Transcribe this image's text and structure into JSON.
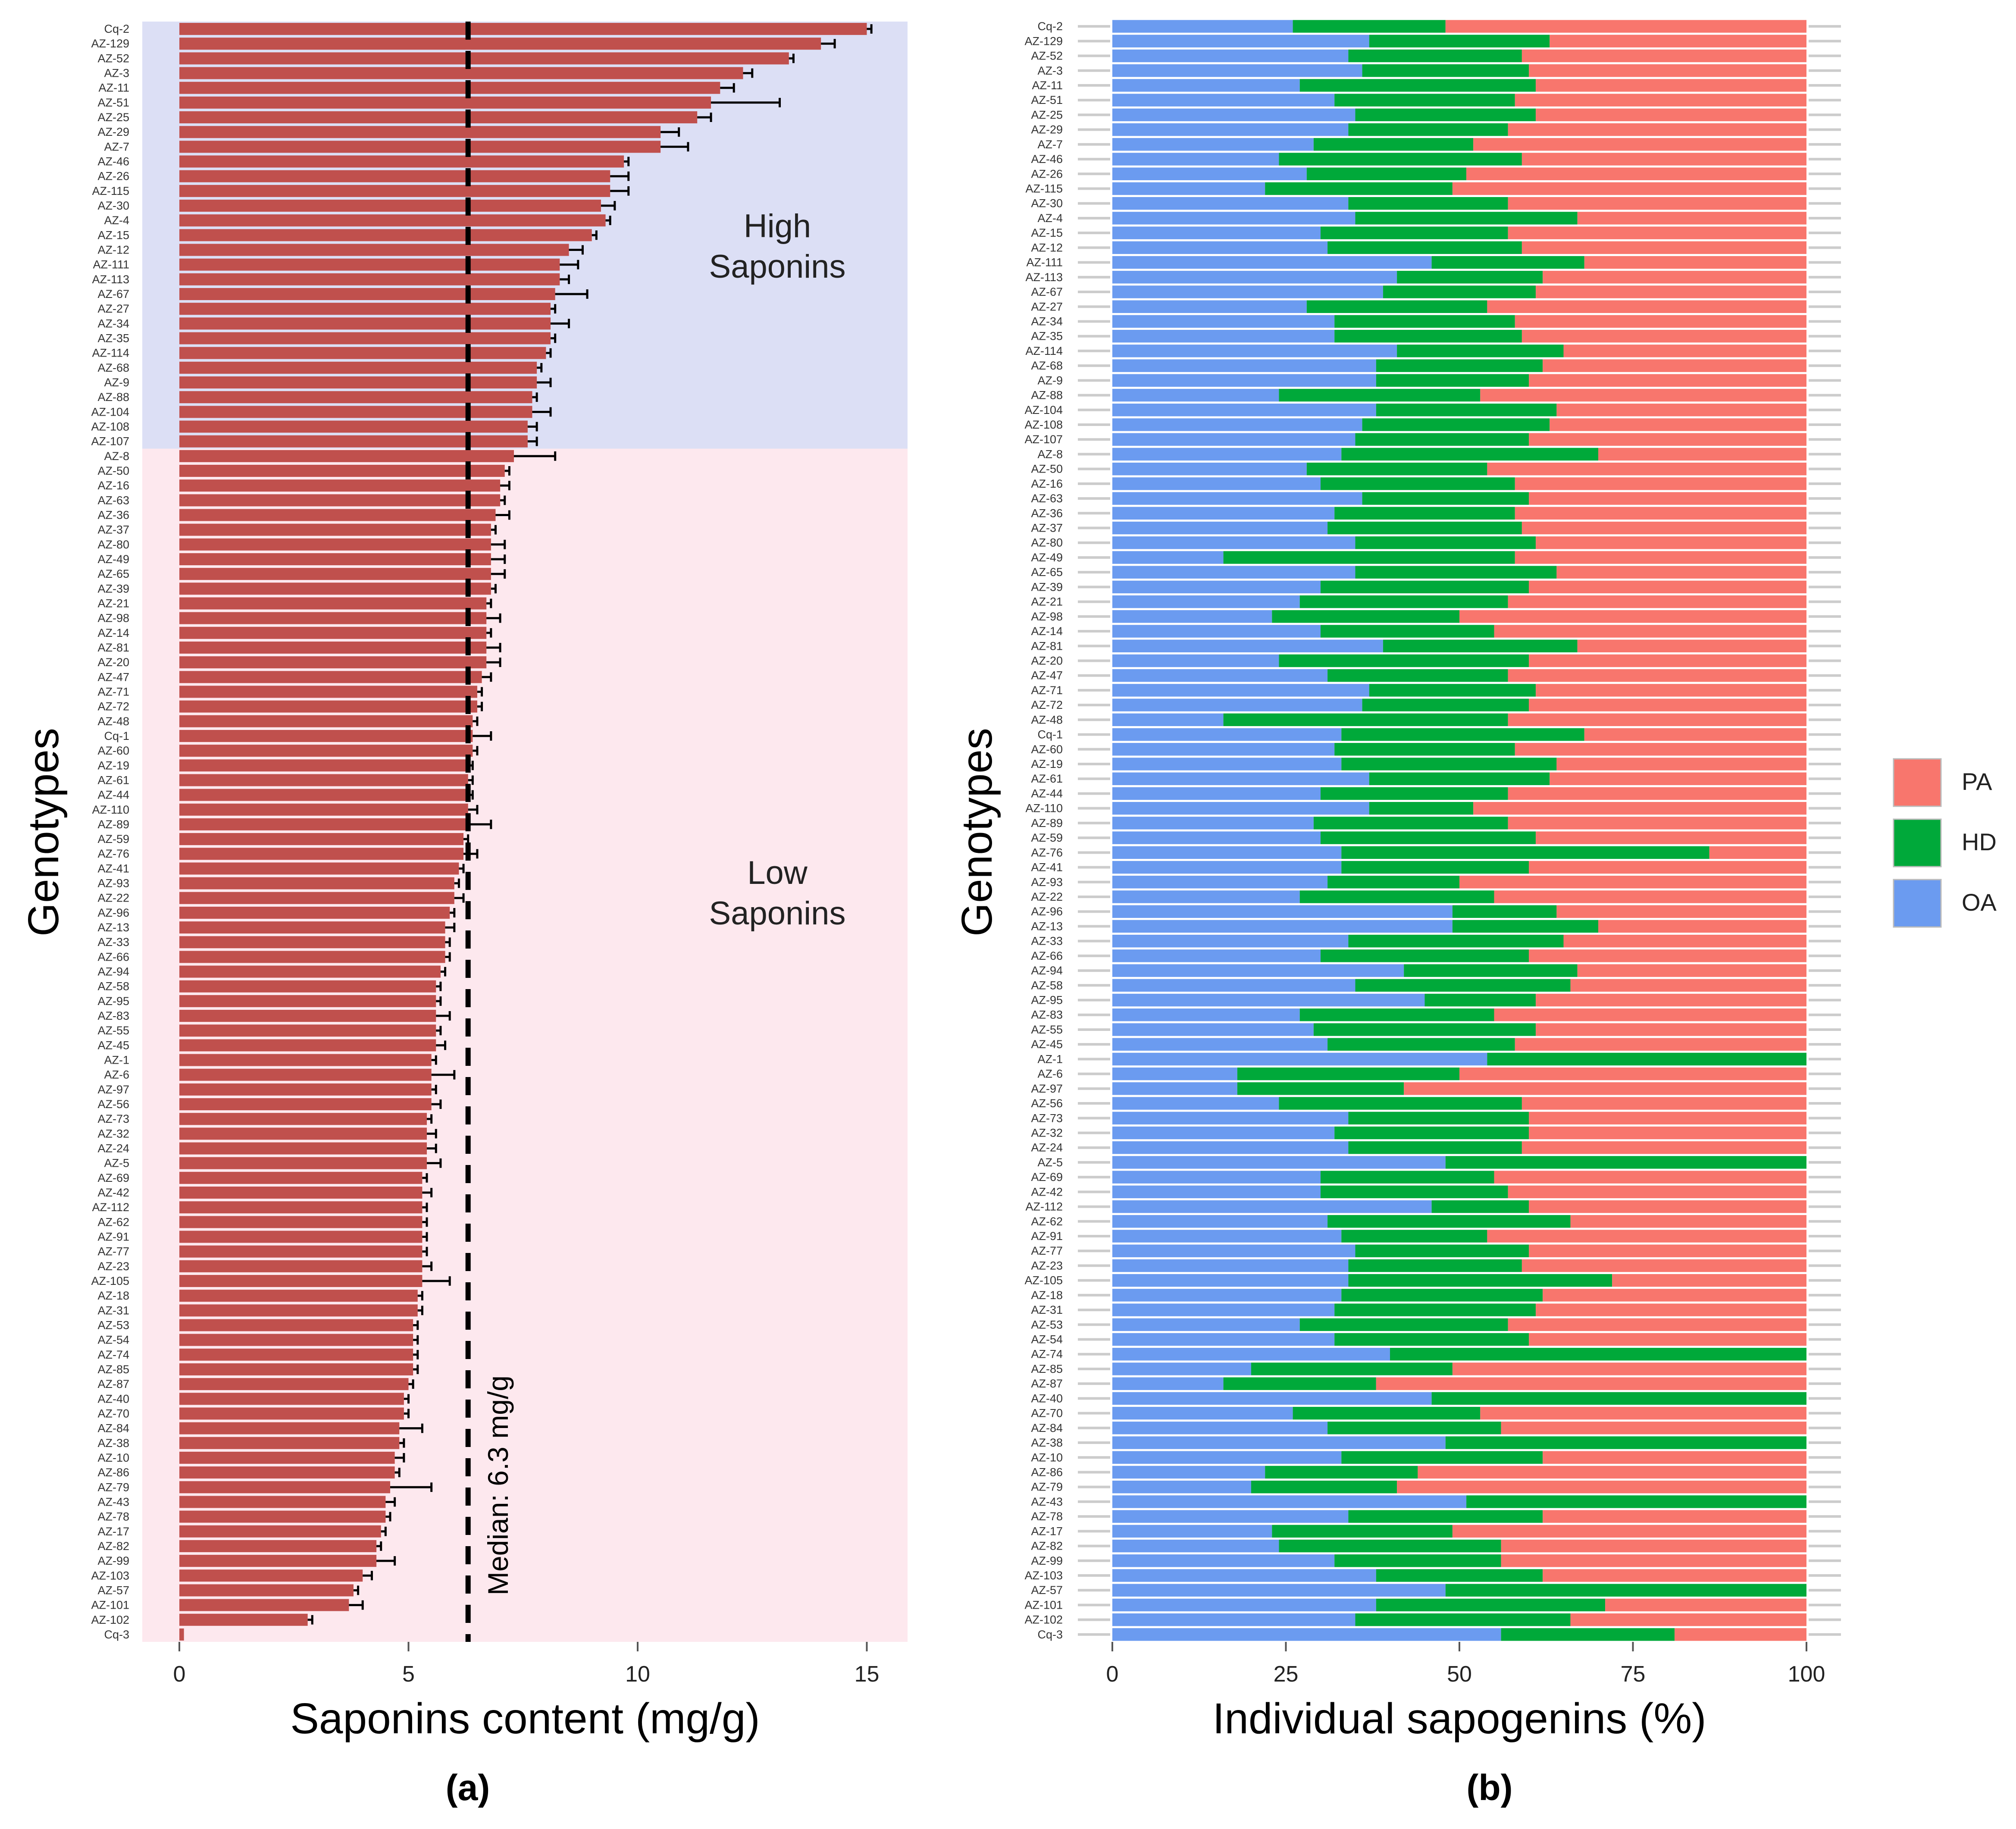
{
  "figure": {
    "panel_a_caption": "(a)",
    "panel_b_caption": "(b)"
  },
  "colors": {
    "bar_red": "#c0504d",
    "high_band": "#dcdff5",
    "low_band": "#fde8ee",
    "PA": "#f8766d",
    "HD": "#00a93a",
    "OA": "#6b9bf0",
    "axis_line": "#cccccc"
  },
  "chart_data": [
    {
      "type": "bar",
      "orientation": "horizontal",
      "title": "",
      "xlabel": "Saponins content (mg/g)",
      "ylabel": "Genotypes",
      "xlim": [
        -0.8,
        16.1
      ],
      "xticks": [
        0,
        5,
        10,
        15
      ],
      "categories": [
        "Cq-2",
        "AZ-129",
        "AZ-52",
        "AZ-3",
        "AZ-11",
        "AZ-51",
        "AZ-25",
        "AZ-29",
        "AZ-7",
        "AZ-46",
        "AZ-26",
        "AZ-115",
        "AZ-30",
        "AZ-4",
        "AZ-15",
        "AZ-12",
        "AZ-111",
        "AZ-113",
        "AZ-67",
        "AZ-27",
        "AZ-34",
        "AZ-35",
        "AZ-114",
        "AZ-68",
        "AZ-9",
        "AZ-88",
        "AZ-104",
        "AZ-108",
        "AZ-107",
        "AZ-8",
        "AZ-50",
        "AZ-16",
        "AZ-63",
        "AZ-36",
        "AZ-37",
        "AZ-80",
        "AZ-49",
        "AZ-65",
        "AZ-39",
        "AZ-21",
        "AZ-98",
        "AZ-14",
        "AZ-81",
        "AZ-20",
        "AZ-47",
        "AZ-71",
        "AZ-72",
        "AZ-48",
        "Cq-1",
        "AZ-60",
        "AZ-19",
        "AZ-61",
        "AZ-44",
        "AZ-110",
        "AZ-89",
        "AZ-59",
        "AZ-76",
        "AZ-41",
        "AZ-93",
        "AZ-22",
        "AZ-96",
        "AZ-13",
        "AZ-33",
        "AZ-66",
        "AZ-94",
        "AZ-58",
        "AZ-95",
        "AZ-83",
        "AZ-55",
        "AZ-45",
        "AZ-1",
        "AZ-6",
        "AZ-97",
        "AZ-56",
        "AZ-73",
        "AZ-32",
        "AZ-24",
        "AZ-5",
        "AZ-69",
        "AZ-42",
        "AZ-112",
        "AZ-62",
        "AZ-91",
        "AZ-77",
        "AZ-23",
        "AZ-105",
        "AZ-18",
        "AZ-31",
        "AZ-53",
        "AZ-54",
        "AZ-74",
        "AZ-85",
        "AZ-87",
        "AZ-40",
        "AZ-70",
        "AZ-84",
        "AZ-38",
        "AZ-10",
        "AZ-86",
        "AZ-79",
        "AZ-43",
        "AZ-78",
        "AZ-17",
        "AZ-82",
        "AZ-99",
        "AZ-103",
        "AZ-57",
        "AZ-101",
        "AZ-102",
        "Cq-3"
      ],
      "values": [
        15.0,
        14.0,
        13.3,
        12.3,
        11.8,
        11.6,
        11.3,
        10.5,
        10.5,
        9.7,
        9.4,
        9.4,
        9.2,
        9.3,
        9.0,
        8.5,
        8.3,
        8.3,
        8.2,
        8.1,
        8.1,
        8.1,
        8.0,
        7.8,
        7.8,
        7.7,
        7.7,
        7.6,
        7.6,
        7.3,
        7.1,
        7.0,
        7.0,
        6.9,
        6.8,
        6.8,
        6.8,
        6.8,
        6.8,
        6.7,
        6.7,
        6.7,
        6.7,
        6.7,
        6.6,
        6.5,
        6.5,
        6.4,
        6.4,
        6.4,
        6.3,
        6.3,
        6.3,
        6.3,
        6.3,
        6.2,
        6.2,
        6.1,
        6.0,
        6.0,
        5.9,
        5.8,
        5.8,
        5.8,
        5.7,
        5.6,
        5.6,
        5.6,
        5.6,
        5.6,
        5.5,
        5.5,
        5.5,
        5.5,
        5.4,
        5.4,
        5.4,
        5.4,
        5.3,
        5.3,
        5.3,
        5.3,
        5.3,
        5.3,
        5.3,
        5.3,
        5.2,
        5.2,
        5.1,
        5.1,
        5.1,
        5.1,
        5.0,
        4.9,
        4.9,
        4.8,
        4.8,
        4.7,
        4.7,
        4.6,
        4.5,
        4.5,
        4.4,
        4.3,
        4.3,
        4.0,
        3.8,
        3.7,
        2.8,
        0.1
      ],
      "errors": [
        0.1,
        0.3,
        0.1,
        0.2,
        0.3,
        1.5,
        0.3,
        0.4,
        0.6,
        0.1,
        0.4,
        0.4,
        0.3,
        0.1,
        0.1,
        0.3,
        0.4,
        0.2,
        0.7,
        0.1,
        0.4,
        0.1,
        0.1,
        0.1,
        0.3,
        0.1,
        0.4,
        0.2,
        0.2,
        0.9,
        0.1,
        0.2,
        0.1,
        0.3,
        0.1,
        0.3,
        0.3,
        0.3,
        0.1,
        0.1,
        0.3,
        0.1,
        0.3,
        0.3,
        0.2,
        0.1,
        0.1,
        0.1,
        0.4,
        0.1,
        0.1,
        0.1,
        0.1,
        0.2,
        0.5,
        0.1,
        0.3,
        0.1,
        0.1,
        0.2,
        0.1,
        0.2,
        0.1,
        0.1,
        0.1,
        0.1,
        0.1,
        0.3,
        0.1,
        0.2,
        0.1,
        0.5,
        0.1,
        0.2,
        0.1,
        0.2,
        0.2,
        0.3,
        0.1,
        0.2,
        0.1,
        0.1,
        0.1,
        0.1,
        0.2,
        0.6,
        0.1,
        0.1,
        0.1,
        0.1,
        0.1,
        0.1,
        0.1,
        0.1,
        0.1,
        0.5,
        0.1,
        0.2,
        0.1,
        0.9,
        0.2,
        0.1,
        0.1,
        0.1,
        0.4,
        0.2,
        0.1,
        0.3,
        0.1,
        0.0
      ],
      "median": 6.3,
      "median_label": "Median: 6.3 mg/g",
      "groups": [
        {
          "label": "High Saponins",
          "lines": [
            "High",
            "Saponins"
          ],
          "count": 29
        },
        {
          "label": "Low Saponins",
          "lines": [
            "Low",
            "Saponins"
          ],
          "count": 81
        }
      ]
    },
    {
      "type": "bar",
      "stacked": true,
      "orientation": "horizontal",
      "title": "",
      "xlabel": "Individual sapogenins (%)",
      "ylabel": "Genotypes",
      "xlim": [
        0,
        100
      ],
      "xticks": [
        0,
        25,
        50,
        75,
        100
      ],
      "categories": [
        "Cq-2",
        "AZ-129",
        "AZ-52",
        "AZ-3",
        "AZ-11",
        "AZ-51",
        "AZ-25",
        "AZ-29",
        "AZ-7",
        "AZ-46",
        "AZ-26",
        "AZ-115",
        "AZ-30",
        "AZ-4",
        "AZ-15",
        "AZ-12",
        "AZ-111",
        "AZ-113",
        "AZ-67",
        "AZ-27",
        "AZ-34",
        "AZ-35",
        "AZ-114",
        "AZ-68",
        "AZ-9",
        "AZ-88",
        "AZ-104",
        "AZ-108",
        "AZ-107",
        "AZ-8",
        "AZ-50",
        "AZ-16",
        "AZ-63",
        "AZ-36",
        "AZ-37",
        "AZ-80",
        "AZ-49",
        "AZ-65",
        "AZ-39",
        "AZ-21",
        "AZ-98",
        "AZ-14",
        "AZ-81",
        "AZ-20",
        "AZ-47",
        "AZ-71",
        "AZ-72",
        "AZ-48",
        "Cq-1",
        "AZ-60",
        "AZ-19",
        "AZ-61",
        "AZ-44",
        "AZ-110",
        "AZ-89",
        "AZ-59",
        "AZ-76",
        "AZ-41",
        "AZ-93",
        "AZ-22",
        "AZ-96",
        "AZ-13",
        "AZ-33",
        "AZ-66",
        "AZ-94",
        "AZ-58",
        "AZ-95",
        "AZ-83",
        "AZ-55",
        "AZ-45",
        "AZ-1",
        "AZ-6",
        "AZ-97",
        "AZ-56",
        "AZ-73",
        "AZ-32",
        "AZ-24",
        "AZ-5",
        "AZ-69",
        "AZ-42",
        "AZ-112",
        "AZ-62",
        "AZ-91",
        "AZ-77",
        "AZ-23",
        "AZ-105",
        "AZ-18",
        "AZ-31",
        "AZ-53",
        "AZ-54",
        "AZ-74",
        "AZ-85",
        "AZ-87",
        "AZ-40",
        "AZ-70",
        "AZ-84",
        "AZ-38",
        "AZ-10",
        "AZ-86",
        "AZ-79",
        "AZ-43",
        "AZ-78",
        "AZ-17",
        "AZ-82",
        "AZ-99",
        "AZ-103",
        "AZ-57",
        "AZ-101",
        "AZ-102",
        "Cq-3"
      ],
      "legend": [
        "PA",
        "HD",
        "OA"
      ],
      "legend_position": "right",
      "series": [
        {
          "name": "OA",
          "values": [
            26,
            37,
            34,
            36,
            27,
            32,
            35,
            34,
            29,
            24,
            28,
            22,
            34,
            35,
            30,
            31,
            46,
            41,
            39,
            28,
            32,
            32,
            41,
            38,
            38,
            24,
            38,
            36,
            35,
            33,
            28,
            30,
            36,
            32,
            31,
            35,
            16,
            35,
            30,
            27,
            23,
            30,
            39,
            24,
            31,
            37,
            36,
            16,
            33,
            32,
            33,
            37,
            30,
            37,
            29,
            30,
            33,
            33,
            31,
            27,
            49,
            49,
            34,
            30,
            42,
            35,
            45,
            27,
            29,
            31,
            54,
            18,
            18,
            24,
            34,
            32,
            34,
            48,
            30,
            30,
            46,
            31,
            33,
            35,
            34,
            34,
            33,
            32,
            27,
            32,
            40,
            20,
            16,
            46,
            26,
            31,
            48,
            33,
            22,
            20,
            51,
            34,
            23,
            24,
            32,
            38,
            48,
            38,
            35,
            56
          ]
        },
        {
          "name": "HD",
          "values": [
            22,
            26,
            25,
            24,
            34,
            26,
            26,
            23,
            23,
            35,
            23,
            27,
            23,
            32,
            27,
            28,
            22,
            21,
            22,
            26,
            26,
            27,
            24,
            24,
            22,
            29,
            26,
            27,
            25,
            37,
            26,
            28,
            24,
            26,
            28,
            26,
            42,
            29,
            30,
            30,
            27,
            25,
            28,
            36,
            26,
            24,
            24,
            41,
            35,
            26,
            31,
            26,
            27,
            15,
            28,
            31,
            53,
            27,
            19,
            28,
            15,
            21,
            31,
            30,
            25,
            31,
            16,
            28,
            32,
            27,
            46,
            32,
            24,
            35,
            26,
            28,
            25,
            52,
            25,
            27,
            14,
            35,
            21,
            25,
            25,
            38,
            29,
            29,
            30,
            28,
            60,
            29,
            22,
            54,
            27,
            25,
            52,
            29,
            22,
            21,
            49,
            28,
            26,
            32,
            24,
            24,
            52,
            33,
            31,
            25
          ]
        },
        {
          "name": "PA",
          "values": [
            52,
            37,
            41,
            40,
            39,
            42,
            39,
            43,
            48,
            41,
            49,
            51,
            43,
            33,
            43,
            41,
            32,
            38,
            39,
            46,
            42,
            41,
            35,
            38,
            40,
            47,
            36,
            37,
            40,
            30,
            46,
            42,
            40,
            42,
            41,
            39,
            42,
            36,
            40,
            43,
            50,
            45,
            33,
            40,
            43,
            39,
            40,
            43,
            32,
            42,
            36,
            37,
            43,
            48,
            43,
            39,
            14,
            40,
            50,
            45,
            36,
            30,
            35,
            40,
            33,
            34,
            39,
            45,
            39,
            42,
            0,
            50,
            58,
            41,
            40,
            40,
            41,
            0,
            45,
            43,
            40,
            34,
            46,
            40,
            41,
            28,
            38,
            39,
            43,
            40,
            0,
            51,
            62,
            0,
            47,
            44,
            0,
            38,
            56,
            59,
            0,
            38,
            51,
            44,
            44,
            38,
            0,
            29,
            34,
            19
          ]
        }
      ]
    }
  ]
}
